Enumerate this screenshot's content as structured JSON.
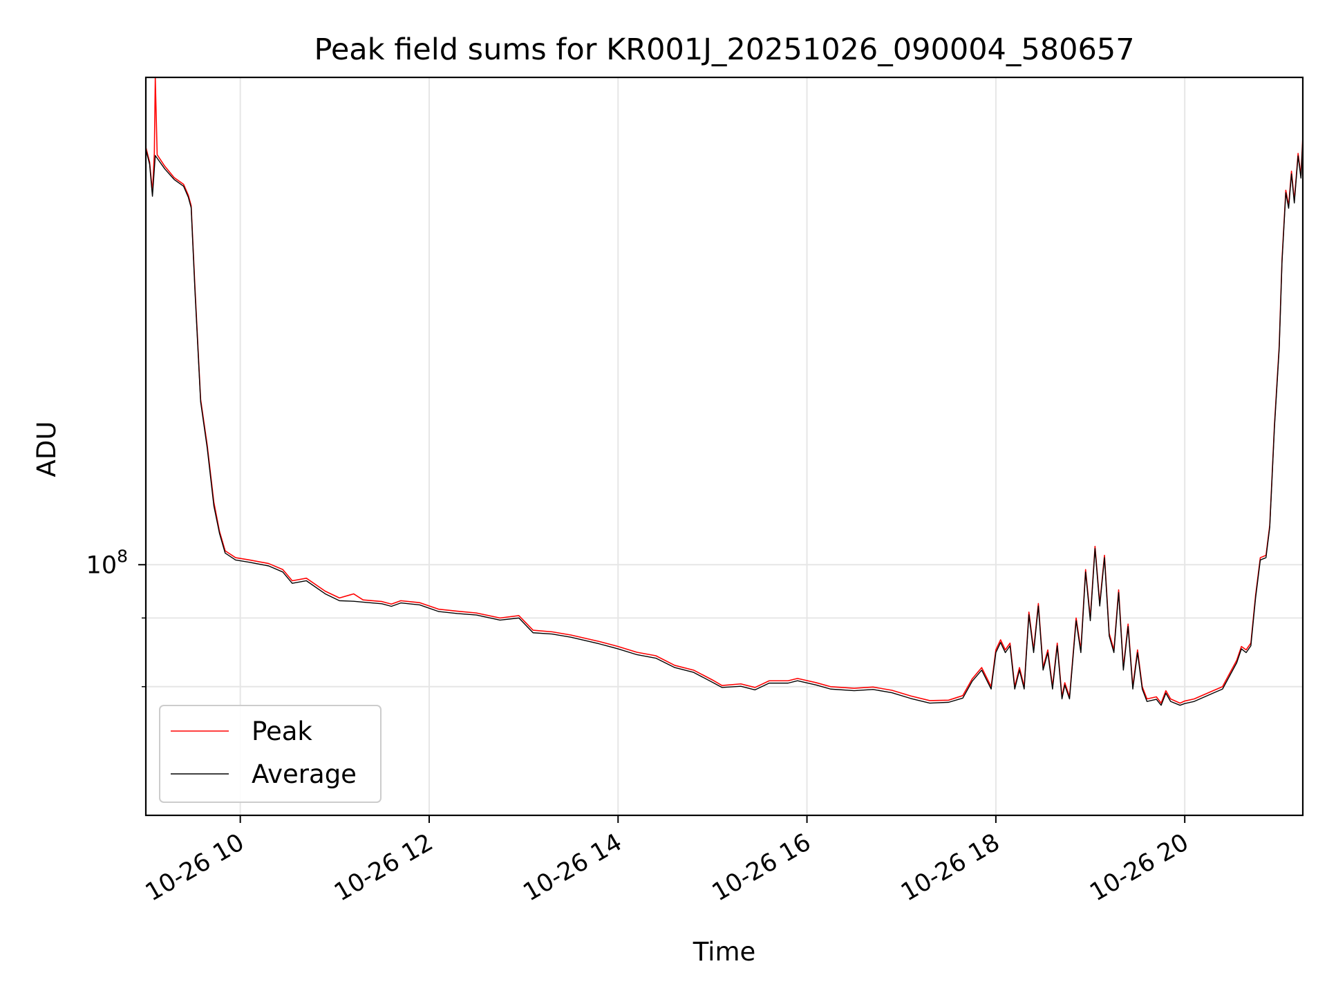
{
  "chart_data": {
    "type": "line",
    "title": "Peak field sums for KR001J_20251026_090004_580657",
    "xlabel": "Time",
    "ylabel": "ADU",
    "yscale": "log",
    "ylim": [
      35000000,
      770000000
    ],
    "xlim": [
      9.0,
      21.25
    ],
    "x_ticks": [
      {
        "value": 10,
        "label": "10-26 10"
      },
      {
        "value": 12,
        "label": "10-26 12"
      },
      {
        "value": 14,
        "label": "10-26 14"
      },
      {
        "value": 16,
        "label": "10-26 16"
      },
      {
        "value": 18,
        "label": "10-26 18"
      },
      {
        "value": 20,
        "label": "10-26 20"
      }
    ],
    "y_major_ticks": [
      {
        "value": 100000000,
        "base": "10",
        "exponent": "8"
      }
    ],
    "y_minor_ticks": [
      60000000,
      80000000
    ],
    "grid": true,
    "legend_position": "lower-left",
    "series": [
      {
        "name": "Peak",
        "color": "#ff0000",
        "points": [
          [
            9.0,
            575000000
          ],
          [
            9.04,
            540000000
          ],
          [
            9.07,
            476000000
          ],
          [
            9.09,
            560000000
          ],
          [
            9.1,
            769000000
          ],
          [
            9.12,
            557000000
          ],
          [
            9.2,
            531000000
          ],
          [
            9.3,
            506000000
          ],
          [
            9.4,
            492000000
          ],
          [
            9.45,
            470000000
          ],
          [
            9.48,
            450000000
          ],
          [
            9.52,
            320000000
          ],
          [
            9.58,
            200000000
          ],
          [
            9.65,
            165000000
          ],
          [
            9.72,
            130000000
          ],
          [
            9.78,
            115000000
          ],
          [
            9.84,
            106000000
          ],
          [
            9.95,
            103000000
          ],
          [
            10.1,
            102000000
          ],
          [
            10.3,
            100500000
          ],
          [
            10.45,
            98000000
          ],
          [
            10.55,
            93500000
          ],
          [
            10.7,
            94500000
          ],
          [
            10.9,
            89500000
          ],
          [
            11.05,
            87000000
          ],
          [
            11.2,
            88500000
          ],
          [
            11.3,
            86300000
          ],
          [
            11.5,
            85700000
          ],
          [
            11.6,
            84800000
          ],
          [
            11.7,
            86000000
          ],
          [
            11.9,
            85300000
          ],
          [
            12.1,
            83000000
          ],
          [
            12.3,
            82300000
          ],
          [
            12.5,
            81700000
          ],
          [
            12.75,
            80000000
          ],
          [
            12.95,
            80800000
          ],
          [
            13.1,
            76000000
          ],
          [
            13.3,
            75500000
          ],
          [
            13.5,
            74500000
          ],
          [
            13.8,
            72500000
          ],
          [
            14.0,
            71000000
          ],
          [
            14.2,
            69300000
          ],
          [
            14.4,
            68300000
          ],
          [
            14.6,
            65600000
          ],
          [
            14.8,
            64300000
          ],
          [
            15.0,
            61700000
          ],
          [
            15.1,
            60300000
          ],
          [
            15.3,
            60700000
          ],
          [
            15.45,
            59800000
          ],
          [
            15.6,
            61500000
          ],
          [
            15.8,
            61500000
          ],
          [
            15.9,
            62100000
          ],
          [
            16.1,
            61000000
          ],
          [
            16.25,
            60000000
          ],
          [
            16.5,
            59600000
          ],
          [
            16.7,
            59900000
          ],
          [
            16.9,
            59100000
          ],
          [
            17.1,
            57700000
          ],
          [
            17.3,
            56600000
          ],
          [
            17.5,
            56700000
          ],
          [
            17.65,
            57800000
          ],
          [
            17.75,
            62000000
          ],
          [
            17.85,
            65000000
          ],
          [
            17.95,
            60000000
          ],
          [
            18.0,
            70000000
          ],
          [
            18.05,
            73000000
          ],
          [
            18.1,
            70000000
          ],
          [
            18.15,
            72000000
          ],
          [
            18.2,
            60000000
          ],
          [
            18.25,
            65000000
          ],
          [
            18.3,
            60000000
          ],
          [
            18.35,
            82000000
          ],
          [
            18.4,
            70000000
          ],
          [
            18.45,
            85000000
          ],
          [
            18.5,
            65000000
          ],
          [
            18.55,
            70000000
          ],
          [
            18.6,
            60000000
          ],
          [
            18.65,
            72000000
          ],
          [
            18.7,
            57500000
          ],
          [
            18.73,
            61000000
          ],
          [
            18.78,
            57500000
          ],
          [
            18.85,
            80000000
          ],
          [
            18.9,
            70000000
          ],
          [
            18.95,
            98000000
          ],
          [
            19.0,
            80000000
          ],
          [
            19.05,
            108000000
          ],
          [
            19.1,
            85000000
          ],
          [
            19.15,
            104000000
          ],
          [
            19.2,
            75000000
          ],
          [
            19.25,
            70000000
          ],
          [
            19.3,
            90000000
          ],
          [
            19.35,
            65000000
          ],
          [
            19.4,
            78000000
          ],
          [
            19.45,
            60000000
          ],
          [
            19.5,
            70000000
          ],
          [
            19.55,
            60000000
          ],
          [
            19.6,
            57000000
          ],
          [
            19.7,
            57500000
          ],
          [
            19.75,
            56000000
          ],
          [
            19.8,
            59000000
          ],
          [
            19.85,
            57000000
          ],
          [
            19.95,
            56000000
          ],
          [
            20.0,
            56500000
          ],
          [
            20.1,
            57000000
          ],
          [
            20.3,
            59000000
          ],
          [
            20.4,
            60000000
          ],
          [
            20.55,
            67000000
          ],
          [
            20.6,
            71000000
          ],
          [
            20.65,
            70000000
          ],
          [
            20.7,
            72000000
          ],
          [
            20.75,
            88000000
          ],
          [
            20.8,
            103000000
          ],
          [
            20.86,
            104000000
          ],
          [
            20.9,
            118000000
          ],
          [
            20.95,
            180000000
          ],
          [
            21.0,
            250000000
          ],
          [
            21.03,
            360000000
          ],
          [
            21.07,
            480000000
          ],
          [
            21.1,
            450000000
          ],
          [
            21.13,
            520000000
          ],
          [
            21.16,
            460000000
          ],
          [
            21.2,
            560000000
          ],
          [
            21.23,
            510000000
          ],
          [
            21.25,
            600000000
          ]
        ]
      },
      {
        "name": "Average",
        "color": "#000000",
        "points": [
          [
            9.0,
            570000000
          ],
          [
            9.04,
            535000000
          ],
          [
            9.07,
            468000000
          ],
          [
            9.1,
            555000000
          ],
          [
            9.2,
            525000000
          ],
          [
            9.3,
            502000000
          ],
          [
            9.4,
            488000000
          ],
          [
            9.45,
            466000000
          ],
          [
            9.48,
            446000000
          ],
          [
            9.52,
            315000000
          ],
          [
            9.58,
            198000000
          ],
          [
            9.65,
            163000000
          ],
          [
            9.72,
            128000000
          ],
          [
            9.78,
            114000000
          ],
          [
            9.84,
            105000000
          ],
          [
            9.95,
            102000000
          ],
          [
            10.1,
            101000000
          ],
          [
            10.3,
            99500000
          ],
          [
            10.45,
            97000000
          ],
          [
            10.55,
            92500000
          ],
          [
            10.7,
            93500000
          ],
          [
            10.9,
            88500000
          ],
          [
            11.05,
            86000000
          ],
          [
            11.2,
            85800000
          ],
          [
            11.3,
            85500000
          ],
          [
            11.5,
            84900000
          ],
          [
            11.6,
            84000000
          ],
          [
            11.7,
            85200000
          ],
          [
            11.9,
            84500000
          ],
          [
            12.1,
            82200000
          ],
          [
            12.3,
            81500000
          ],
          [
            12.5,
            81000000
          ],
          [
            12.75,
            79300000
          ],
          [
            12.95,
            80000000
          ],
          [
            13.1,
            75200000
          ],
          [
            13.3,
            74800000
          ],
          [
            13.5,
            73800000
          ],
          [
            13.8,
            71800000
          ],
          [
            14.0,
            70300000
          ],
          [
            14.2,
            68600000
          ],
          [
            14.4,
            67600000
          ],
          [
            14.6,
            65000000
          ],
          [
            14.8,
            63700000
          ],
          [
            15.0,
            61100000
          ],
          [
            15.1,
            59800000
          ],
          [
            15.3,
            60100000
          ],
          [
            15.45,
            59200000
          ],
          [
            15.6,
            60900000
          ],
          [
            15.8,
            60900000
          ],
          [
            15.9,
            61500000
          ],
          [
            16.1,
            60400000
          ],
          [
            16.25,
            59400000
          ],
          [
            16.5,
            59000000
          ],
          [
            16.7,
            59300000
          ],
          [
            16.9,
            58500000
          ],
          [
            17.1,
            57100000
          ],
          [
            17.3,
            56000000
          ],
          [
            17.5,
            56200000
          ],
          [
            17.65,
            57200000
          ],
          [
            17.75,
            61400000
          ],
          [
            17.85,
            64300000
          ],
          [
            17.95,
            59400000
          ],
          [
            18.0,
            69200000
          ],
          [
            18.05,
            72200000
          ],
          [
            18.1,
            69200000
          ],
          [
            18.15,
            71200000
          ],
          [
            18.2,
            59400000
          ],
          [
            18.25,
            64300000
          ],
          [
            18.3,
            59400000
          ],
          [
            18.35,
            81100000
          ],
          [
            18.4,
            69200000
          ],
          [
            18.45,
            84100000
          ],
          [
            18.5,
            64300000
          ],
          [
            18.55,
            69200000
          ],
          [
            18.6,
            59400000
          ],
          [
            18.65,
            71200000
          ],
          [
            18.7,
            57000000
          ],
          [
            18.73,
            60400000
          ],
          [
            18.78,
            57000000
          ],
          [
            18.85,
            79100000
          ],
          [
            18.9,
            69200000
          ],
          [
            18.95,
            97000000
          ],
          [
            19.0,
            79100000
          ],
          [
            19.05,
            107000000
          ],
          [
            19.1,
            84100000
          ],
          [
            19.15,
            103000000
          ],
          [
            19.2,
            74200000
          ],
          [
            19.25,
            69200000
          ],
          [
            19.3,
            89000000
          ],
          [
            19.35,
            64300000
          ],
          [
            19.4,
            77200000
          ],
          [
            19.45,
            59400000
          ],
          [
            19.5,
            69200000
          ],
          [
            19.55,
            59400000
          ],
          [
            19.6,
            56400000
          ],
          [
            19.7,
            56900000
          ],
          [
            19.75,
            55500000
          ],
          [
            19.8,
            58400000
          ],
          [
            19.85,
            56400000
          ],
          [
            19.95,
            55500000
          ],
          [
            20.0,
            55900000
          ],
          [
            20.1,
            56400000
          ],
          [
            20.3,
            58400000
          ],
          [
            20.4,
            59400000
          ],
          [
            20.55,
            66300000
          ],
          [
            20.6,
            70300000
          ],
          [
            20.65,
            69200000
          ],
          [
            20.7,
            71200000
          ],
          [
            20.75,
            87000000
          ],
          [
            20.8,
            102000000
          ],
          [
            20.86,
            103000000
          ],
          [
            20.9,
            117000000
          ],
          [
            20.95,
            178000000
          ],
          [
            21.0,
            247000000
          ],
          [
            21.03,
            356000000
          ],
          [
            21.07,
            475000000
          ],
          [
            21.1,
            445000000
          ],
          [
            21.13,
            514000000
          ],
          [
            21.16,
            455000000
          ],
          [
            21.2,
            554000000
          ],
          [
            21.23,
            505000000
          ],
          [
            21.25,
            594000000
          ]
        ]
      }
    ]
  },
  "colors": {
    "peak": "#ff0000",
    "average": "#000000",
    "grid": "#e6e6e6",
    "axes": "#000000",
    "legend_border": "#cccccc"
  }
}
